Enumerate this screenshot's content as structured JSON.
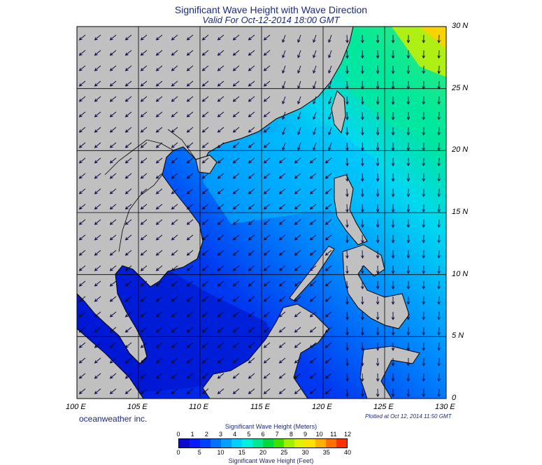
{
  "title": "Significant Wave Height with Wave Direction",
  "subtitle": "Valid For Oct-12-2014 18:00 GMT",
  "credit": "oceanweather inc.",
  "plotted": "Plotted at Oct 12, 2014 11:50 GMT",
  "map": {
    "lon_range": [
      100,
      130
    ],
    "lat_range": [
      0,
      30
    ],
    "lon_ticks": [
      "100 E",
      "105 E",
      "110 E",
      "115 E",
      "120 E",
      "125 E",
      "130 E"
    ],
    "lat_ticks": [
      "30 N",
      "25 N",
      "20 N",
      "15 N",
      "10 N",
      "5 N",
      "0"
    ],
    "grid": true,
    "land_color": "#c0c0c0",
    "coast_color": "#000000",
    "arrow_color": "#06063a"
  },
  "colorbar": {
    "title_top": "Significant Wave Height (Meters)",
    "title_bottom": "Significant Wave Height (Feet)",
    "meters": [
      "0",
      "1",
      "2",
      "3",
      "4",
      "5",
      "6",
      "7",
      "8",
      "9",
      "10",
      "11",
      "12"
    ],
    "feet": [
      "0",
      "5",
      "10",
      "15",
      "20",
      "25",
      "30",
      "35",
      "40"
    ],
    "colors": [
      "#0a0acc",
      "#0a1aff",
      "#0040ff",
      "#0070ff",
      "#00a0ff",
      "#00d0ff",
      "#00f0e0",
      "#00e890",
      "#00d840",
      "#40e000",
      "#a0f000",
      "#e0f000",
      "#ffe000",
      "#ffb000",
      "#ff7000",
      "#ff3000"
    ]
  }
}
